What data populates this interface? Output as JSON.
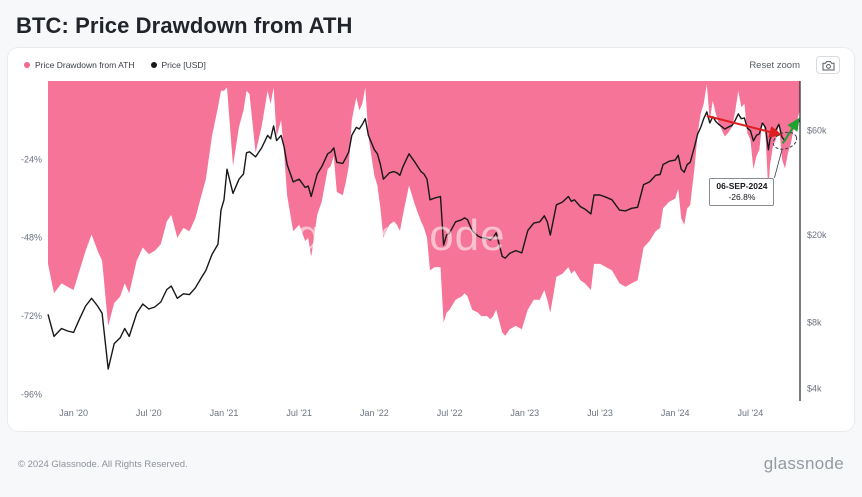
{
  "title": "BTC: Price Drawdown from ATH",
  "legend": [
    {
      "label": "Price Drawdown from ATH",
      "color": "#f4688e"
    },
    {
      "label": "Price [USD]",
      "color": "#17181a"
    }
  ],
  "controls": {
    "reset_zoom": "Reset zoom"
  },
  "watermark": "glassnode",
  "footer": {
    "copyright": "© 2024 Glassnode. All Rights Reserved.",
    "brand": "glassnode"
  },
  "chart_data": {
    "type": "area",
    "title": "BTC: Price Drawdown from ATH",
    "x_domain": [
      2019.83,
      2024.83
    ],
    "x_ticks": [
      {
        "x": 2020.0,
        "label": "Jan '20"
      },
      {
        "x": 2020.5,
        "label": "Jul '20"
      },
      {
        "x": 2021.0,
        "label": "Jan '21"
      },
      {
        "x": 2021.5,
        "label": "Jul '21"
      },
      {
        "x": 2022.0,
        "label": "Jan '22"
      },
      {
        "x": 2022.5,
        "label": "Jul '22"
      },
      {
        "x": 2023.0,
        "label": "Jan '23"
      },
      {
        "x": 2023.5,
        "label": "Jul '23"
      },
      {
        "x": 2024.0,
        "label": "Jan '24"
      },
      {
        "x": 2024.5,
        "label": "Jul '24"
      }
    ],
    "left_axis": {
      "name": "Drawdown from ATH",
      "min": -98,
      "max": 0,
      "ticks": [
        {
          "v": -24,
          "label": "-24%"
        },
        {
          "v": -48,
          "label": "-48%"
        },
        {
          "v": -72,
          "label": "-72%"
        },
        {
          "v": -96,
          "label": "-96%"
        }
      ]
    },
    "right_axis": {
      "name": "Price USD",
      "scale": "log",
      "min": 3500,
      "max": 101000,
      "ticks": [
        {
          "v": 60000,
          "label": "$60k"
        },
        {
          "v": 20000,
          "label": "$20k"
        },
        {
          "v": 8000,
          "label": "$8k"
        },
        {
          "v": 4000,
          "label": "$4k"
        }
      ]
    },
    "series": [
      {
        "name": "Price Drawdown from ATH",
        "type": "area",
        "axis": "left",
        "unit": "%",
        "color": "#f4688e"
      },
      {
        "name": "Price [USD]",
        "type": "line",
        "axis": "right",
        "unit": "USD",
        "color": "#17181a"
      }
    ],
    "points_columns": [
      "year_decimal",
      "drawdown_pct",
      "price_usd"
    ],
    "points": [
      [
        2019.83,
        -56,
        8700
      ],
      [
        2019.87,
        -65,
        6900
      ],
      [
        2019.92,
        -62,
        7500
      ],
      [
        2019.96,
        -63,
        7300
      ],
      [
        2020.0,
        -64,
        7200
      ],
      [
        2020.04,
        -58,
        8300
      ],
      [
        2020.08,
        -52,
        9500
      ],
      [
        2020.12,
        -47,
        10300
      ],
      [
        2020.16,
        -52,
        9500
      ],
      [
        2020.19,
        -55,
        8800
      ],
      [
        2020.23,
        -75,
        4900
      ],
      [
        2020.27,
        -68,
        6400
      ],
      [
        2020.31,
        -66,
        6800
      ],
      [
        2020.34,
        -62,
        7500
      ],
      [
        2020.37,
        -65,
        6900
      ],
      [
        2020.42,
        -55,
        8800
      ],
      [
        2020.46,
        -51,
        9700
      ],
      [
        2020.5,
        -53,
        9200
      ],
      [
        2020.54,
        -52,
        9400
      ],
      [
        2020.58,
        -50,
        9900
      ],
      [
        2020.62,
        -43,
        11300
      ],
      [
        2020.65,
        -41,
        11700
      ],
      [
        2020.69,
        -48,
        10300
      ],
      [
        2020.73,
        -45,
        10800
      ],
      [
        2020.77,
        -46,
        10700
      ],
      [
        2020.81,
        -42,
        11500
      ],
      [
        2020.85,
        -35,
        12800
      ],
      [
        2020.88,
        -30,
        13800
      ],
      [
        2020.92,
        -17,
        16300
      ],
      [
        2020.96,
        -8,
        18200
      ],
      [
        2020.98,
        -3,
        26000
      ],
      [
        2021.0,
        -3,
        29000
      ],
      [
        2021.02,
        -2,
        40000
      ],
      [
        2021.06,
        -26,
        31000
      ],
      [
        2021.1,
        -14,
        36000
      ],
      [
        2021.13,
        -9,
        38000
      ],
      [
        2021.15,
        -3,
        47500
      ],
      [
        2021.17,
        -4,
        48000
      ],
      [
        2021.21,
        -22,
        45500
      ],
      [
        2021.25,
        -14,
        50000
      ],
      [
        2021.29,
        -3,
        57000
      ],
      [
        2021.31,
        -7,
        55000
      ],
      [
        2021.33,
        -2,
        63000
      ],
      [
        2021.35,
        -17,
        54000
      ],
      [
        2021.38,
        -12,
        57000
      ],
      [
        2021.4,
        -22,
        50500
      ],
      [
        2021.42,
        -35,
        42000
      ],
      [
        2021.46,
        -46,
        35000
      ],
      [
        2021.5,
        -44,
        36000
      ],
      [
        2021.54,
        -49,
        33000
      ],
      [
        2021.56,
        -48,
        33500
      ],
      [
        2021.58,
        -54,
        30000
      ],
      [
        2021.62,
        -41,
        38000
      ],
      [
        2021.65,
        -37,
        41000
      ],
      [
        2021.69,
        -27,
        47000
      ],
      [
        2021.71,
        -26,
        48000
      ],
      [
        2021.73,
        -23,
        50000
      ],
      [
        2021.75,
        -34,
        43000
      ],
      [
        2021.79,
        -35,
        42500
      ],
      [
        2021.81,
        -31,
        45000
      ],
      [
        2021.83,
        -26,
        48000
      ],
      [
        2021.85,
        -12,
        57000
      ],
      [
        2021.88,
        -5,
        62000
      ],
      [
        2021.9,
        -9,
        61000
      ],
      [
        2021.92,
        -7,
        64000
      ],
      [
        2021.94,
        -2,
        68000
      ],
      [
        2021.96,
        -17,
        57000
      ],
      [
        2022.0,
        -29,
        49000
      ],
      [
        2022.02,
        -32,
        47000
      ],
      [
        2022.04,
        -39,
        42000
      ],
      [
        2022.06,
        -48,
        36000
      ],
      [
        2022.1,
        -44,
        38500
      ],
      [
        2022.13,
        -43,
        39000
      ],
      [
        2022.15,
        -44,
        38500
      ],
      [
        2022.17,
        -46,
        37500
      ],
      [
        2022.19,
        -41,
        41000
      ],
      [
        2022.23,
        -32,
        47000
      ],
      [
        2022.27,
        -38,
        43000
      ],
      [
        2022.31,
        -43,
        39000
      ],
      [
        2022.33,
        -45,
        38000
      ],
      [
        2022.35,
        -48,
        36000
      ],
      [
        2022.37,
        -58,
        29000
      ],
      [
        2022.4,
        -57,
        29500
      ],
      [
        2022.44,
        -57,
        30000
      ],
      [
        2022.46,
        -74,
        18000
      ],
      [
        2022.48,
        -71,
        20000
      ],
      [
        2022.5,
        -70,
        20500
      ],
      [
        2022.54,
        -67,
        23000
      ],
      [
        2022.58,
        -66,
        23500
      ],
      [
        2022.6,
        -65,
        24000
      ],
      [
        2022.62,
        -66,
        23500
      ],
      [
        2022.65,
        -70,
        21000
      ],
      [
        2022.69,
        -71,
        19800
      ],
      [
        2022.71,
        -72,
        19500
      ],
      [
        2022.75,
        -72,
        19300
      ],
      [
        2022.77,
        -73,
        19000
      ],
      [
        2022.79,
        -72,
        19500
      ],
      [
        2022.81,
        -70,
        20500
      ],
      [
        2022.85,
        -77,
        16000
      ],
      [
        2022.87,
        -78,
        15700
      ],
      [
        2022.9,
        -76,
        16500
      ],
      [
        2022.94,
        -75,
        17000
      ],
      [
        2022.98,
        -76,
        16600
      ],
      [
        2023.02,
        -70,
        21000
      ],
      [
        2023.06,
        -67,
        22700
      ],
      [
        2023.1,
        -67,
        23000
      ],
      [
        2023.13,
        -64,
        24500
      ],
      [
        2023.15,
        -67,
        23000
      ],
      [
        2023.17,
        -71,
        20000
      ],
      [
        2023.21,
        -60,
        27500
      ],
      [
        2023.25,
        -59,
        28300
      ],
      [
        2023.29,
        -57,
        30000
      ],
      [
        2023.31,
        -59,
        28500
      ],
      [
        2023.33,
        -58,
        29000
      ],
      [
        2023.37,
        -61,
        27000
      ],
      [
        2023.4,
        -62,
        26300
      ],
      [
        2023.44,
        -64,
        25000
      ],
      [
        2023.46,
        -56,
        30500
      ],
      [
        2023.5,
        -56,
        30500
      ],
      [
        2023.54,
        -57,
        29800
      ],
      [
        2023.58,
        -58,
        29000
      ],
      [
        2023.63,
        -62,
        26000
      ],
      [
        2023.67,
        -63,
        25800
      ],
      [
        2023.71,
        -62,
        26500
      ],
      [
        2023.75,
        -61,
        26800
      ],
      [
        2023.79,
        -51,
        34000
      ],
      [
        2023.83,
        -49,
        35000
      ],
      [
        2023.87,
        -46,
        37500
      ],
      [
        2023.9,
        -45,
        37800
      ],
      [
        2023.92,
        -39,
        42000
      ],
      [
        2023.96,
        -37,
        43500
      ],
      [
        2024.0,
        -36,
        44000
      ],
      [
        2024.02,
        -33,
        46300
      ],
      [
        2024.04,
        -42,
        40000
      ],
      [
        2024.06,
        -44,
        38700
      ],
      [
        2024.08,
        -39,
        42000
      ],
      [
        2024.1,
        -38,
        43000
      ],
      [
        2024.13,
        -26,
        51000
      ],
      [
        2024.15,
        -16,
        58000
      ],
      [
        2024.17,
        -10,
        62000
      ],
      [
        2024.19,
        -7,
        68000
      ],
      [
        2024.21,
        -1,
        73000
      ],
      [
        2024.23,
        -12,
        65000
      ],
      [
        2024.25,
        -6,
        69500
      ],
      [
        2024.27,
        -10,
        66000
      ],
      [
        2024.29,
        -13,
        64000
      ],
      [
        2024.33,
        -17,
        61000
      ],
      [
        2024.35,
        -16,
        62000
      ],
      [
        2024.38,
        -14,
        63500
      ],
      [
        2024.4,
        -9,
        67000
      ],
      [
        2024.42,
        -3,
        71500
      ],
      [
        2024.44,
        -8,
        68000
      ],
      [
        2024.46,
        -7,
        68500
      ],
      [
        2024.48,
        -16,
        61500
      ],
      [
        2024.5,
        -18,
        60000
      ],
      [
        2024.52,
        -27,
        53800
      ],
      [
        2024.54,
        -23,
        57000
      ],
      [
        2024.56,
        -21,
        58000
      ],
      [
        2024.58,
        -12,
        65000
      ],
      [
        2024.6,
        -16,
        62000
      ],
      [
        2024.62,
        -34,
        49000
      ],
      [
        2024.63,
        -26,
        54500
      ],
      [
        2024.65,
        -20,
        59000
      ],
      [
        2024.67,
        -18,
        60500
      ],
      [
        2024.69,
        -13,
        64000
      ],
      [
        2024.71,
        -24,
        56000
      ],
      [
        2024.73,
        -26.8,
        53900
      ],
      [
        2024.75,
        -22,
        57500
      ],
      [
        2024.77,
        -19,
        60000
      ],
      [
        2024.79,
        -14,
        63500
      ],
      [
        2024.81,
        -12,
        64800
      ],
      [
        2024.83,
        -9,
        67000
      ]
    ],
    "annotation": {
      "date_label": "06-SEP-2024",
      "value_label": "-26.8%",
      "point": {
        "x": 2024.73,
        "price": 53900,
        "drawdown": -26.8
      },
      "red_arrow": {
        "from": {
          "x": 2024.21,
          "price": 70000
        },
        "to": {
          "x": 2024.7,
          "price": 57500
        },
        "color": "#df1f1f"
      },
      "green_arrow": {
        "from": {
          "x": 2024.715,
          "price": 52500
        },
        "to": {
          "x": 2024.82,
          "price": 67500
        },
        "color": "#1da230"
      },
      "box_anchor": {
        "x": 2024.66,
        "price": 36500
      }
    },
    "grid": "off",
    "legend_position": "top-left"
  }
}
